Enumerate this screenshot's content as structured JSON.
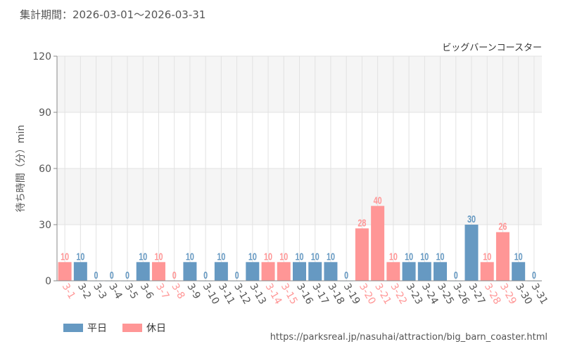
{
  "header": {
    "period_label": "集計期間：2026-03-01～2026-03-31"
  },
  "footer": {
    "source_url": "https://parksreal.jp/nasuhai/attraction/big_barn_coaster.html"
  },
  "legend": {
    "weekday_label": "平日",
    "holiday_label": "休日"
  },
  "colors": {
    "weekday": "#6699c2",
    "holiday": "#ff9696",
    "band": "#f5f5f5",
    "grid": "#e2e2e2"
  },
  "chart_data": {
    "type": "bar",
    "title": "ビッグバーンコースター",
    "xlabel": "",
    "ylabel": "待ち時間（分）min",
    "ylim": [
      0,
      120
    ],
    "yticks": [
      0,
      30,
      60,
      90,
      120
    ],
    "categories": [
      "3-1",
      "3-2",
      "3-3",
      "3-4",
      "3-5",
      "3-6",
      "3-7",
      "3-8",
      "3-9",
      "3-10",
      "3-11",
      "3-12",
      "3-13",
      "3-14",
      "3-15",
      "3-16",
      "3-17",
      "3-18",
      "3-19",
      "3-20",
      "3-21",
      "3-22",
      "3-23",
      "3-24",
      "3-25",
      "3-26",
      "3-27",
      "3-28",
      "3-29",
      "3-30",
      "3-31"
    ],
    "values": [
      10,
      10,
      0,
      0,
      0,
      10,
      10,
      0,
      10,
      0,
      10,
      0,
      10,
      10,
      10,
      10,
      10,
      10,
      0,
      28,
      40,
      10,
      10,
      10,
      10,
      0,
      30,
      10,
      26,
      10,
      0
    ],
    "day_type": [
      "holiday",
      "weekday",
      "weekday",
      "weekday",
      "weekday",
      "weekday",
      "holiday",
      "holiday",
      "weekday",
      "weekday",
      "weekday",
      "weekday",
      "weekday",
      "holiday",
      "holiday",
      "weekday",
      "weekday",
      "weekday",
      "weekday",
      "holiday",
      "holiday",
      "holiday",
      "weekday",
      "weekday",
      "weekday",
      "weekday",
      "weekday",
      "holiday",
      "holiday",
      "weekday",
      "weekday"
    ],
    "grid": true,
    "legend_position": "bottom-left"
  }
}
